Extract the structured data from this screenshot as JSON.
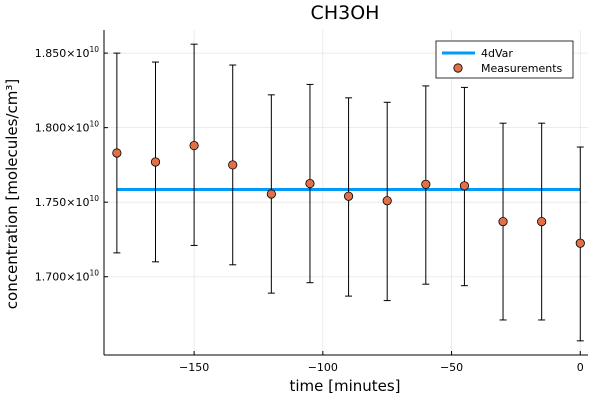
{
  "chart_data": {
    "type": "scatter",
    "title": "CH3OH",
    "xlabel": "time [minutes]",
    "ylabel": "concentration [molecules/cm³]",
    "xlim": [
      -185,
      3
    ],
    "ylim": [
      16475000000.0,
      18655000000.0
    ],
    "x_ticks": [
      -150,
      -100,
      -50,
      0
    ],
    "x_tick_labels": [
      "−150",
      "−100",
      "−50",
      "0"
    ],
    "y_ticks": [
      17000000000.0,
      17500000000.0,
      18000000000.0,
      18500000000.0
    ],
    "y_tick_labels": [
      {
        "mantissa": "1.700",
        "times": "×10",
        "exp": "10"
      },
      {
        "mantissa": "1.750",
        "times": "×10",
        "exp": "10"
      },
      {
        "mantissa": "1.800",
        "times": "×10",
        "exp": "10"
      },
      {
        "mantissa": "1.850",
        "times": "×10",
        "exp": "10"
      }
    ],
    "grid": true,
    "legend_position": "top-right",
    "series": [
      {
        "name": "4dVar",
        "kind": "line",
        "color": "#009AF9",
        "x": [
          -180,
          0
        ],
        "y": [
          17585000000.0,
          17585000000.0
        ]
      },
      {
        "name": "Measurements",
        "kind": "scatter",
        "color": "#E26F46",
        "x": [
          -180,
          -165,
          -150,
          -135,
          -120,
          -105,
          -90,
          -75,
          -60,
          -45,
          -30,
          -15,
          0
        ],
        "y": [
          17830000000.0,
          17770000000.0,
          17880000000.0,
          17750000000.0,
          17555000000.0,
          17625000000.0,
          17540000000.0,
          17510000000.0,
          17620000000.0,
          17610000000.0,
          17370000000.0,
          17370000000.0,
          17225000000.0
        ],
        "yerr_low": [
          17160000000.0,
          17100000000.0,
          17210000000.0,
          17080000000.0,
          16890000000.0,
          16960000000.0,
          16870000000.0,
          16840000000.0,
          16950000000.0,
          16940000000.0,
          16710000000.0,
          16710000000.0,
          16570000000.0
        ],
        "yerr_high": [
          18500000000.0,
          18440000000.0,
          18560000000.0,
          18420000000.0,
          18220000000.0,
          18290000000.0,
          18200000000.0,
          18170000000.0,
          18280000000.0,
          18270000000.0,
          18030000000.0,
          18030000000.0,
          17870000000.0
        ]
      }
    ]
  }
}
